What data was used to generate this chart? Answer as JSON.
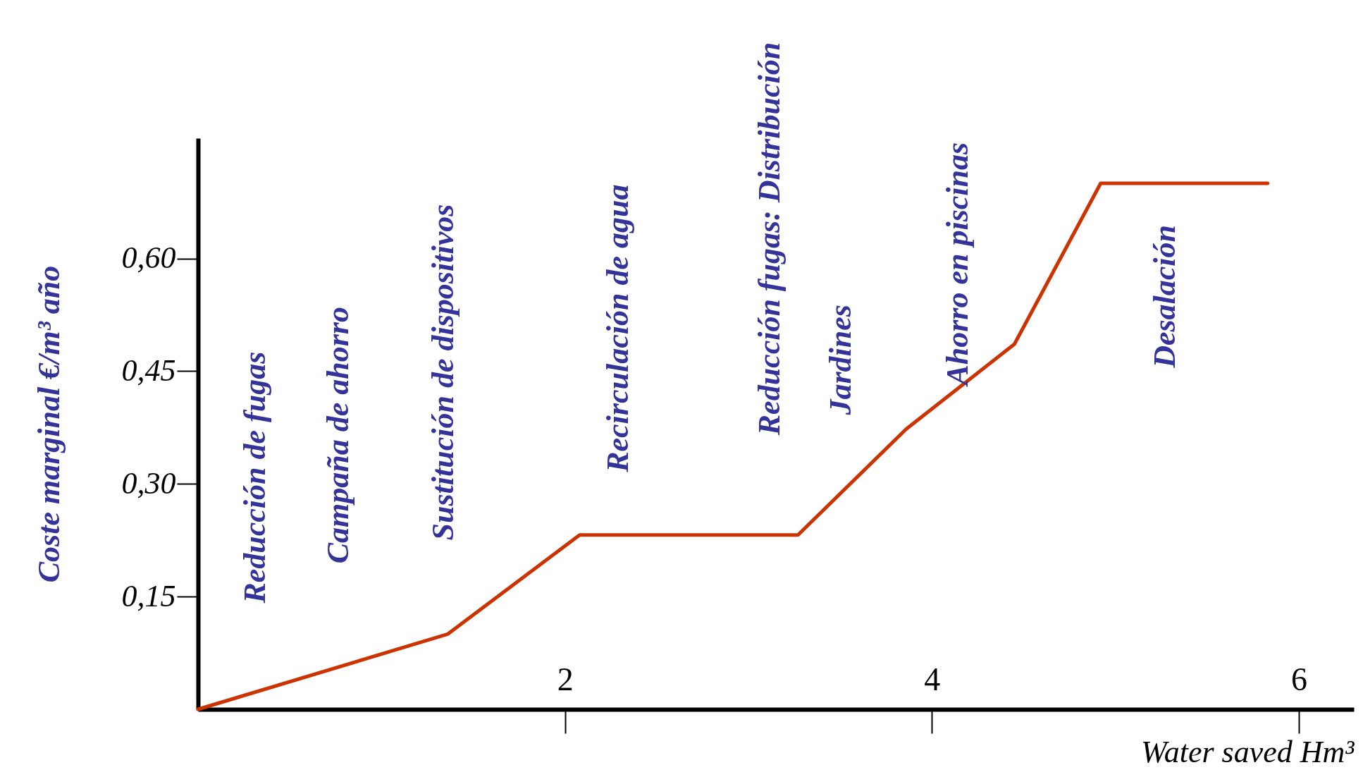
{
  "chart_data": {
    "type": "line",
    "xlabel": "Water saved Hm³",
    "ylabel": "Coste marginal €/m³ año",
    "x": [
      0,
      1.36,
      2.08,
      3.27,
      3.86,
      4.45,
      4.92,
      5.83
    ],
    "series": [
      {
        "color": "#cc3300",
        "values": [
          0,
          0.1,
          0.232,
          0.232,
          0.373,
          0.486,
          0.7,
          0.7
        ]
      }
    ],
    "xlim": [
      0,
      6.3
    ],
    "ylim": [
      0,
      0.76
    ],
    "xticks": [
      2,
      4,
      6
    ],
    "yticks": [
      {
        "value": 0.15,
        "label": "0,15"
      },
      {
        "value": 0.3,
        "label": "0,30"
      },
      {
        "value": 0.45,
        "label": "0,45"
      },
      {
        "value": 0.6,
        "label": "0,60"
      }
    ],
    "grid": false,
    "marker": "none",
    "line_style": "solid",
    "annotations": [
      "Reducción de fugas",
      "Campaña de ahorro",
      "Sustitución de dispositivos",
      "Recirculación de agua",
      "Reducción fugas: Distribución",
      "Jardines",
      "Ahorro en piscinas",
      "Desalación"
    ]
  }
}
